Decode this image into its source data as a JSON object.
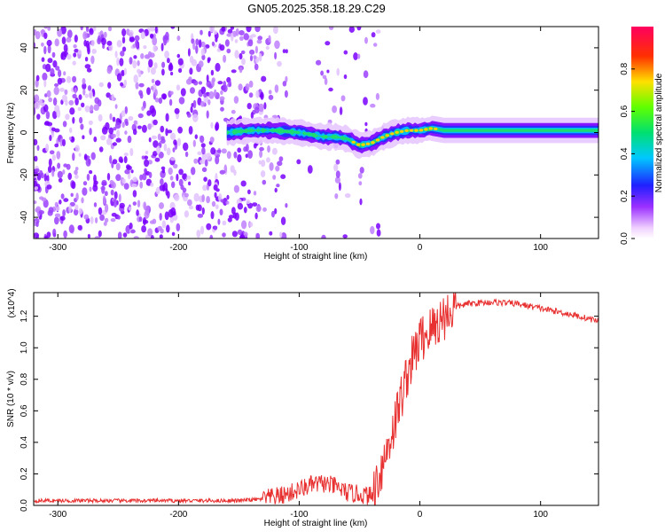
{
  "title": "GN05.2025.358.18.29.C29",
  "chart_data": [
    {
      "type": "heatmap",
      "name": "spectrogram",
      "xlabel": "Height of straight line (km)",
      "ylabel": "Frequency (Hz)",
      "xlim": [
        -320,
        148
      ],
      "ylim": [
        -50,
        50
      ],
      "x_ticks": [
        -300,
        -200,
        -100,
        0,
        100
      ],
      "y_ticks": [
        -40,
        -20,
        0,
        20,
        40
      ],
      "colorbar": {
        "label": "Normalized spectral amplitude",
        "ticks": [
          0.0,
          0.2,
          0.4,
          0.6,
          0.8
        ],
        "range": [
          0,
          1
        ]
      },
      "ridge": {
        "x": [
          -160,
          -140,
          -120,
          -100,
          -80,
          -70,
          -60,
          -50,
          -40,
          -30,
          -20,
          -10,
          0,
          10,
          20,
          148
        ],
        "frequency": [
          0,
          1,
          1,
          0,
          -2,
          -2,
          -3,
          -6,
          -5,
          -2,
          0,
          1,
          1,
          2,
          1,
          1
        ]
      },
      "noise_region_x": [
        -320,
        -70
      ],
      "grid": false
    },
    {
      "type": "line",
      "name": "snr",
      "xlabel": "Height of straight line (km)",
      "ylabel": "SNR (10 * v/v)",
      "y_multiplier": "(x10^4)",
      "xlim": [
        -320,
        148
      ],
      "ylim": [
        0,
        1.35
      ],
      "x_ticks": [
        -300,
        -200,
        -100,
        0,
        100
      ],
      "y_ticks": [
        0.0,
        0.2,
        0.4,
        0.6,
        0.8,
        1.0,
        1.2
      ],
      "series": [
        {
          "color": "#e83030",
          "x": [
            -320,
            -150,
            -130,
            -110,
            -100,
            -90,
            -80,
            -70,
            -60,
            -50,
            -40,
            -30,
            -20,
            -10,
            0,
            10,
            20,
            30,
            40,
            60,
            80,
            100,
            120,
            148
          ],
          "y": [
            0.03,
            0.03,
            0.04,
            0.07,
            0.1,
            0.13,
            0.14,
            0.12,
            0.08,
            0.07,
            0.06,
            0.28,
            0.55,
            0.85,
            1.05,
            1.12,
            1.2,
            1.26,
            1.28,
            1.29,
            1.28,
            1.25,
            1.22,
            1.17
          ]
        }
      ],
      "grid": false
    }
  ]
}
